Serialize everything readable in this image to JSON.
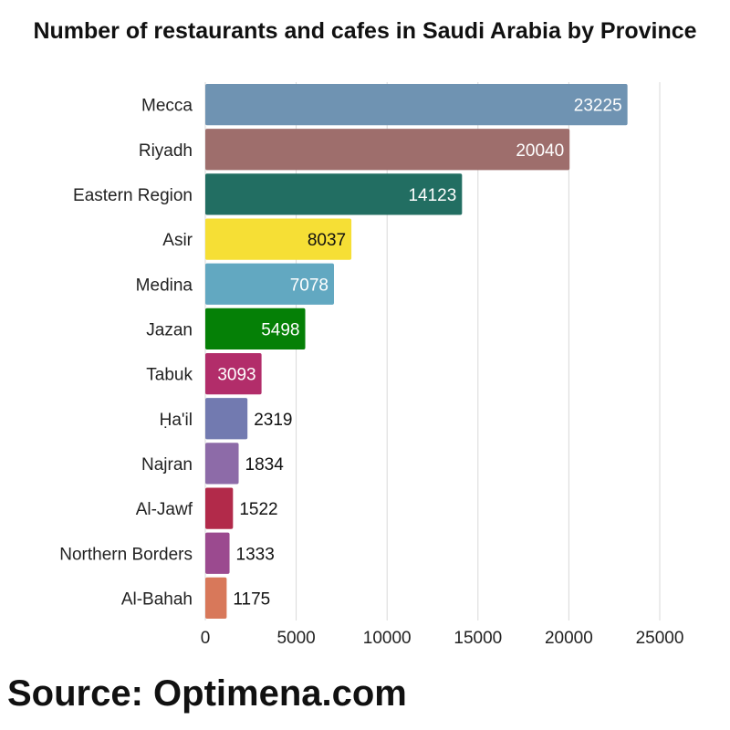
{
  "chart_data": {
    "type": "bar",
    "orientation": "horizontal",
    "title": "Number of restaurants and cafes in Saudi Arabia by Province",
    "xlabel": "",
    "ylabel": "",
    "xlim": [
      0,
      25000
    ],
    "xticks": [
      "0",
      "5000",
      "10000",
      "15000",
      "20000",
      "25000"
    ],
    "grid": "vertical",
    "categories": [
      "Mecca",
      "Riyadh",
      "Eastern Region",
      "Asir",
      "Medina",
      "Jazan",
      "Tabuk",
      "Ḥa'il",
      "Najran",
      "Al-Jawf",
      "Northern Borders",
      "Al-Bahah"
    ],
    "values": [
      23225,
      20040,
      14123,
      8037,
      7078,
      5498,
      3093,
      2319,
      1834,
      1522,
      1333,
      1175
    ],
    "colors": [
      "#6f93b2",
      "#9e6e6c",
      "#226e62",
      "#f6df35",
      "#62a8c1",
      "#058006",
      "#b22d6a",
      "#727ab0",
      "#8d6ba8",
      "#b22a4a",
      "#9b4a8f",
      "#d8785a"
    ],
    "label_colors": [
      "#ffffff",
      "#ffffff",
      "#ffffff",
      "#111111",
      "#ffffff",
      "#ffffff",
      "#ffffff",
      "#111111",
      "#111111",
      "#111111",
      "#111111",
      "#111111"
    ],
    "label_inside": [
      true,
      true,
      true,
      true,
      true,
      true,
      true,
      false,
      false,
      false,
      false,
      false
    ]
  },
  "source": "Source: Optimena.com"
}
